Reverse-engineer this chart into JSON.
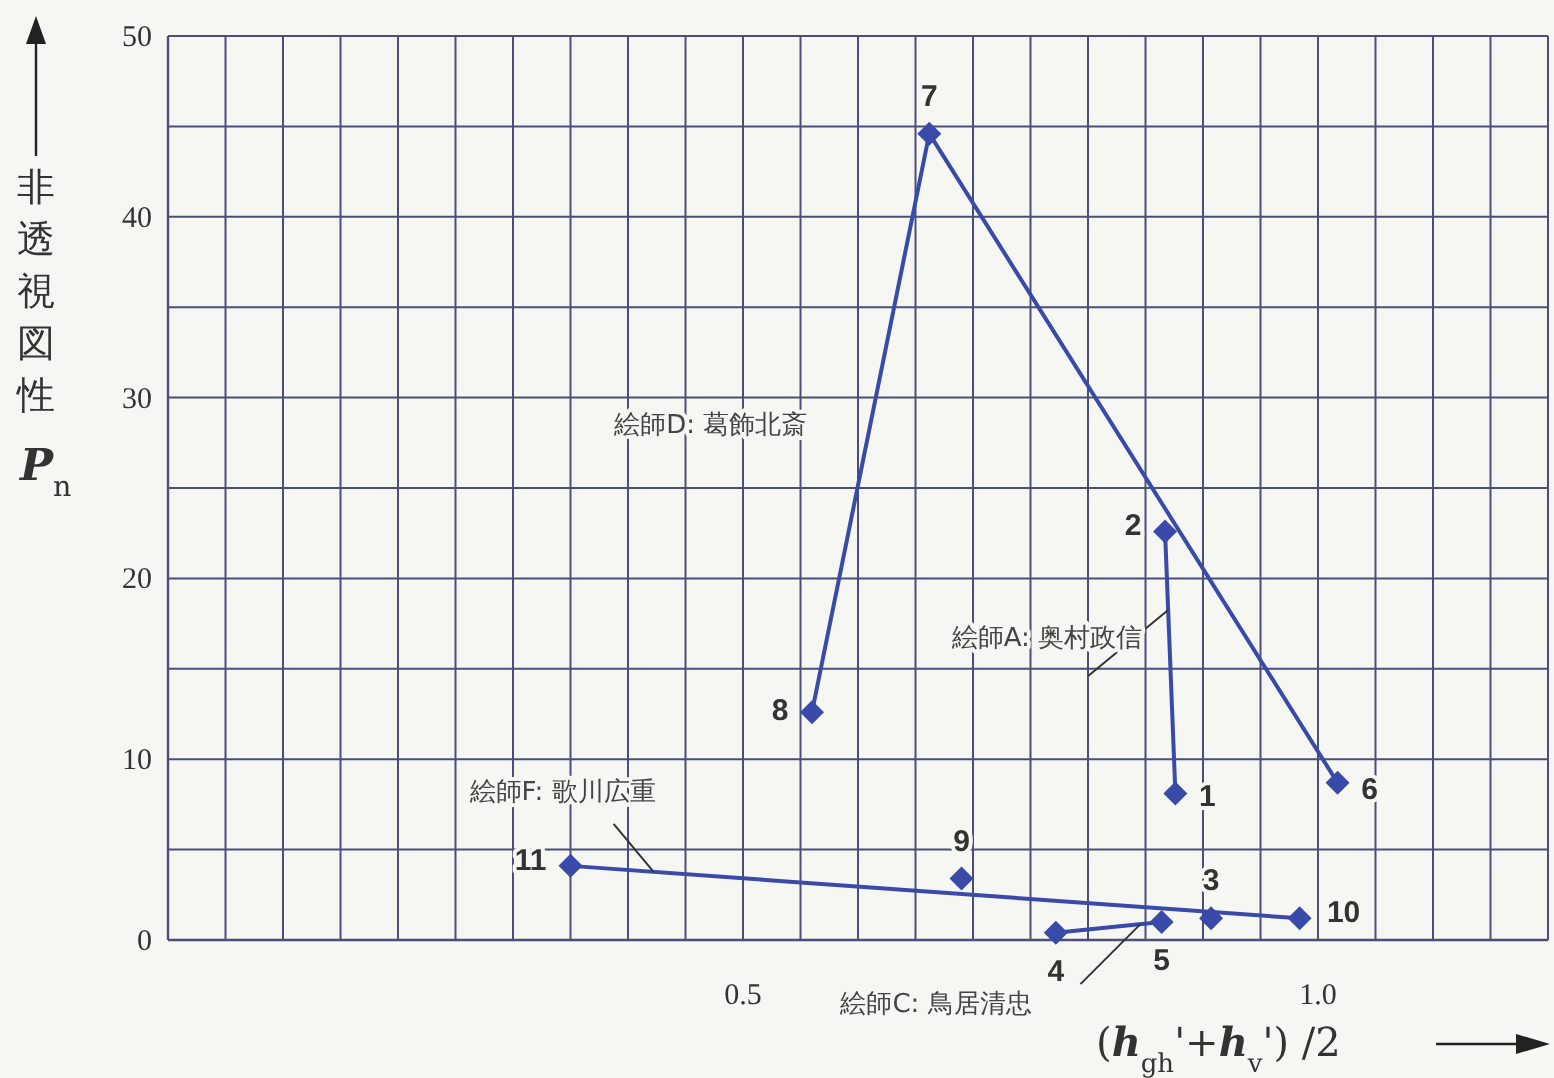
{
  "chart_data": {
    "type": "line",
    "xlabel": "(*h*$_{gh}$'+*h*$_{v}$') /2",
    "ylabel": "非透視図性 *P*$_{n}$",
    "xlim": [
      0,
      1.2
    ],
    "ylim": [
      0,
      50
    ],
    "xticks": [
      {
        "value": 0.05,
        "label": null
      },
      {
        "value": 0.1,
        "label": null
      },
      {
        "value": 0.15,
        "label": null
      },
      {
        "value": 0.2,
        "label": null
      },
      {
        "value": 0.25,
        "label": null
      },
      {
        "value": 0.3,
        "label": null
      },
      {
        "value": 0.35,
        "label": null
      },
      {
        "value": 0.4,
        "label": null
      },
      {
        "value": 0.45,
        "label": null
      },
      0.5,
      {
        "value": 0.55,
        "label": null
      },
      {
        "value": 0.6,
        "label": null
      },
      {
        "value": 0.65,
        "label": null
      },
      {
        "value": 0.7,
        "label": null
      },
      {
        "value": 0.75,
        "label": null
      },
      {
        "value": 0.8,
        "label": null
      },
      {
        "value": 0.85,
        "label": null
      },
      {
        "value": 0.9,
        "label": null
      },
      {
        "value": 0.95,
        "label": null
      },
      {
        "value": 1,
        "label": "1.0"
      },
      {
        "value": 1.05,
        "label": null
      },
      {
        "value": 1.1,
        "label": null
      },
      {
        "value": 1.15,
        "label": null
      },
      {
        "value": 1.2,
        "label": null
      }
    ],
    "yticks": [
      0,
      {
        "value": 5,
        "label": null
      },
      10,
      {
        "value": 15,
        "label": null
      },
      20,
      {
        "value": 25,
        "label": null
      },
      30,
      {
        "value": 35,
        "label": null
      },
      40,
      {
        "value": 45,
        "label": null
      },
      50
    ],
    "grid": true,
    "legend": false,
    "marker": "diamond",
    "line_style": "solid",
    "series": [
      {
        "name": "絵師D: 葛飾北斎",
        "color": "#3a4aa8",
        "x": [
          0.56,
          0.662,
          1.017
        ],
        "values": [
          12.6,
          44.6,
          8.7
        ]
      },
      {
        "name": "絵師A: 奥村政信",
        "color": "#3a4aa8",
        "x": [
          0.867,
          0.876
        ],
        "values": [
          22.6,
          8.1
        ]
      },
      {
        "name": "絵師F: 歌川広重",
        "color": "#3a4aa8",
        "x": [
          0.35,
          0.984
        ],
        "values": [
          4.1,
          1.2
        ]
      },
      {
        "name": "絵師C: 鳥居清忠",
        "color": "#3a4aa8",
        "x": [
          0.772,
          0.864
        ],
        "values": [
          0.4,
          1.0
        ]
      },
      {
        "type": "scatter",
        "color": "#3a4aa8",
        "x": [
          0.69,
          0.907
        ],
        "values": [
          3.4,
          1.2
        ]
      }
    ],
    "annotations": [
      {
        "text": "1",
        "x": 0.876,
        "y": 8.1
      },
      {
        "text": "2",
        "x": 0.867,
        "y": 22.6
      },
      {
        "text": "3",
        "x": 0.907,
        "y": 1.2
      },
      {
        "text": "4",
        "x": 0.772,
        "y": 0.4
      },
      {
        "text": "5",
        "x": 0.864,
        "y": 1.0
      },
      {
        "text": "6",
        "x": 1.017,
        "y": 8.7
      },
      {
        "text": "7",
        "x": 0.662,
        "y": 44.6
      },
      {
        "text": "8",
        "x": 0.56,
        "y": 12.6
      },
      {
        "text": "9",
        "x": 0.69,
        "y": 3.4
      },
      {
        "text": "10",
        "x": 0.984,
        "y": 1.2
      },
      {
        "text": "11",
        "x": 0.35,
        "y": 4.1
      }
    ]
  }
}
